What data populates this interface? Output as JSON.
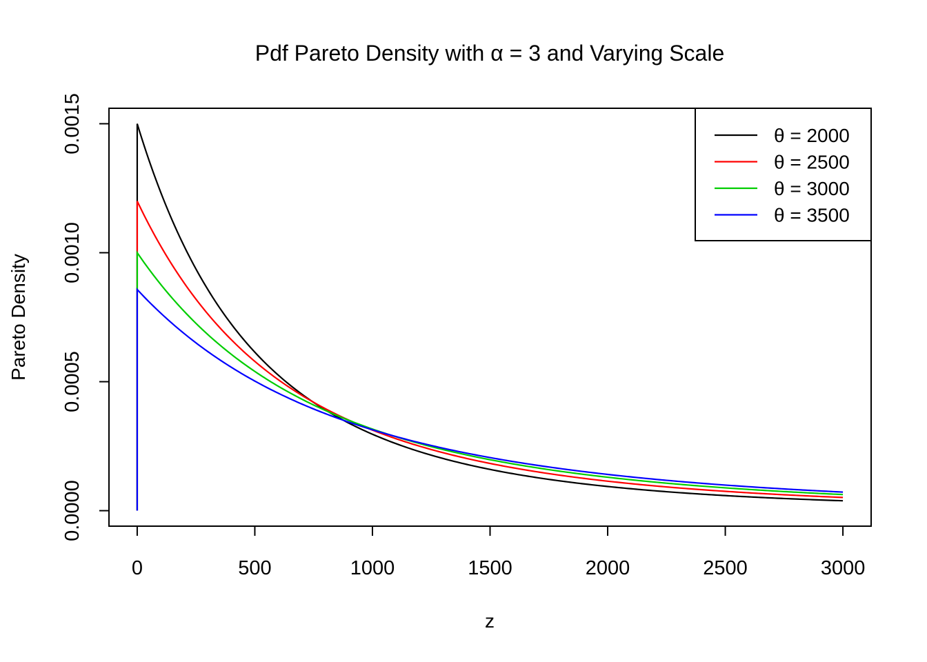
{
  "chart_data": {
    "type": "line",
    "title": "Pdf Pareto Density with α = 3 and Varying Scale",
    "xlabel": "z",
    "ylabel": "Pareto Density",
    "xlim": [
      -120,
      3120
    ],
    "ylim": [
      -6e-05,
      0.00156
    ],
    "x_ticks": [
      0,
      500,
      1000,
      1500,
      2000,
      2500,
      3000
    ],
    "x_tick_labels": [
      "0",
      "500",
      "1000",
      "1500",
      "2000",
      "2500",
      "3000"
    ],
    "y_ticks": [
      0,
      0.0005,
      0.001,
      0.0015
    ],
    "y_tick_labels": [
      "0.0000",
      "0.0005",
      "0.0010",
      "0.0015"
    ],
    "grid": false,
    "legend_position": "top-right",
    "alpha": 3,
    "x_range": [
      0,
      3000
    ],
    "series": [
      {
        "name": "θ = 2000",
        "theta": 2000,
        "color": "#000000"
      },
      {
        "name": "θ = 2500",
        "theta": 2500,
        "color": "#ff0000"
      },
      {
        "name": "θ = 3000",
        "theta": 3000,
        "color": "#00cd00"
      },
      {
        "name": "θ = 3500",
        "theta": 3500,
        "color": "#0000ff"
      }
    ]
  }
}
